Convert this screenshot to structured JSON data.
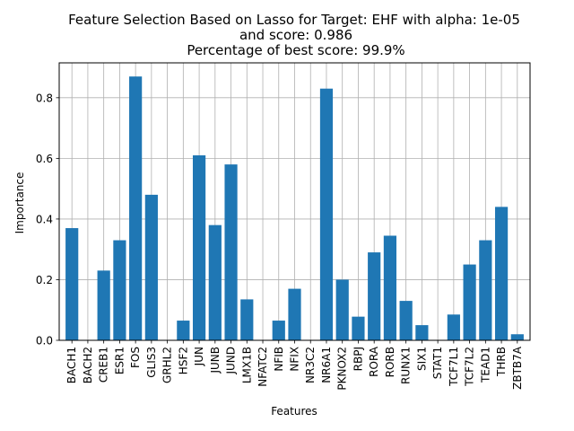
{
  "chart_data": {
    "type": "bar",
    "title_lines": [
      "Feature Selection Based on Lasso for Target: EHF with alpha: 1e-05",
      "and score: 0.986",
      "Percentage of best score: 99.9%"
    ],
    "xlabel": "Features",
    "ylabel": "Importance",
    "ylim": [
      0,
      0.915
    ],
    "yticks": [
      "0.0",
      "0.2",
      "0.4",
      "0.6",
      "0.8"
    ],
    "grid": true,
    "bar_color": "#1f77b4",
    "categories": [
      "BACH1",
      "BACH2",
      "CREB1",
      "ESR1",
      "FOS",
      "GLIS3",
      "GRHL2",
      "HSF2",
      "JUN",
      "JUNB",
      "JUND",
      "LMX1B",
      "NFATC2",
      "NFIB",
      "NFIX",
      "NR3C2",
      "NR6A1",
      "PKNOX2",
      "RBPJ",
      "RORA",
      "RORB",
      "RUNX1",
      "SIX1",
      "STAT1",
      "TCF7L1",
      "TCF7L2",
      "TEAD1",
      "THRB",
      "ZBTB7A"
    ],
    "values": [
      0.37,
      0.0,
      0.23,
      0.33,
      0.87,
      0.48,
      0.0,
      0.065,
      0.61,
      0.38,
      0.58,
      0.135,
      0.0,
      0.065,
      0.17,
      0.0,
      0.83,
      0.2,
      0.078,
      0.29,
      0.345,
      0.13,
      0.05,
      0.0,
      0.085,
      0.25,
      0.33,
      0.44,
      0.02
    ]
  }
}
